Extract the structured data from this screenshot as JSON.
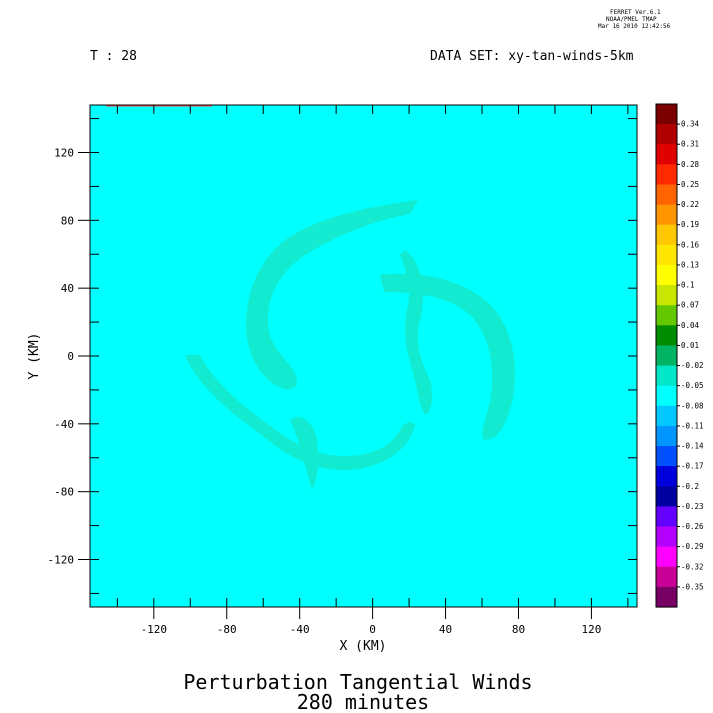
{
  "header": {
    "ferret_lines": [
      "FERRET  Ver.6.1",
      "NOAA/PMEL TMAP",
      "Mar 16 2010 12:42:56"
    ],
    "time_label": "T : 28",
    "dataset_label": "DATA SET: xy-tan-winds-5km"
  },
  "chart_data": {
    "type": "heatmap",
    "title": "Perturbation Tangential Winds",
    "subtitle": "280 minutes",
    "xlabel": "X (KM)",
    "ylabel": "Y (KM)",
    "xlim": [
      -155,
      145
    ],
    "ylim": [
      -148,
      148
    ],
    "xticks": [
      -120,
      -80,
      -40,
      0,
      40,
      80,
      120
    ],
    "yticks": [
      120,
      80,
      40,
      0,
      -40,
      -80,
      -120
    ],
    "x_minor_step": 20,
    "y_minor_step": 20,
    "background_color": "#00ffff",
    "feature_color": "#17e8c8",
    "colorbar": {
      "levels": [
        "0.34",
        "0.31",
        "0.28",
        "0.25",
        "0.22",
        "0.19",
        "0.16",
        "0.13",
        "0.1",
        "0.07",
        "0.04",
        "0.01",
        "-0.02",
        "-0.05",
        "-0.08",
        "-0.11",
        "-0.14",
        "-0.17",
        "-0.2",
        "-0.23",
        "-0.26",
        "-0.29",
        "-0.32",
        "-0.35"
      ],
      "colors": [
        "#7a0000",
        "#b00000",
        "#e00000",
        "#ff2a00",
        "#ff6400",
        "#ff9600",
        "#ffc800",
        "#ffe600",
        "#ffff00",
        "#c8e600",
        "#64c800",
        "#008c00",
        "#00b464",
        "#00e6c8",
        "#00ffff",
        "#00c8ff",
        "#0096ff",
        "#0050ff",
        "#0000dc",
        "#0000a0",
        "#6400ff",
        "#b400ff",
        "#ff00ff",
        "#c80096",
        "#780064"
      ]
    }
  }
}
